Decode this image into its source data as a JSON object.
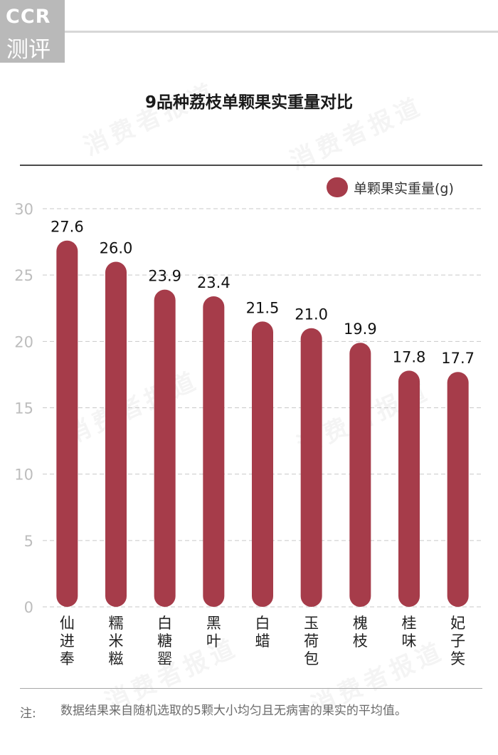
{
  "logo": {
    "line1": "CCR",
    "line2": "测评"
  },
  "watermark": "消费者报道",
  "note": {
    "label": "注:",
    "text": "数据结果来自随机选取的5颗大小均匀且无病害的果实的平均值。"
  },
  "colors": {
    "bar": "#a63c4a",
    "grid": "#c9c9c9",
    "axis_text": "#bdbdbd"
  },
  "chart_data": {
    "type": "bar",
    "title": "9品种荔枝单颗果实重量对比",
    "xlabel": "",
    "ylabel": "",
    "categories": [
      "仙进奉",
      "糯米糍",
      "白糖罂",
      "黑叶",
      "白蜡",
      "玉荷包",
      "槐枝",
      "桂味",
      "妃子笑"
    ],
    "series": [
      {
        "name": "单颗果实重量(g)",
        "values": [
          27.6,
          26.0,
          23.9,
          23.4,
          21.5,
          21.0,
          19.9,
          17.8,
          17.7
        ]
      }
    ],
    "value_labels": [
      "27.6",
      "26.0",
      "23.9",
      "23.4",
      "21.5",
      "21.0",
      "19.9",
      "17.8",
      "17.7"
    ],
    "ylim": [
      0,
      30
    ],
    "yticks": [
      0,
      5,
      10,
      15,
      20,
      25,
      30
    ],
    "grid": true,
    "legend_position": "top-right"
  }
}
